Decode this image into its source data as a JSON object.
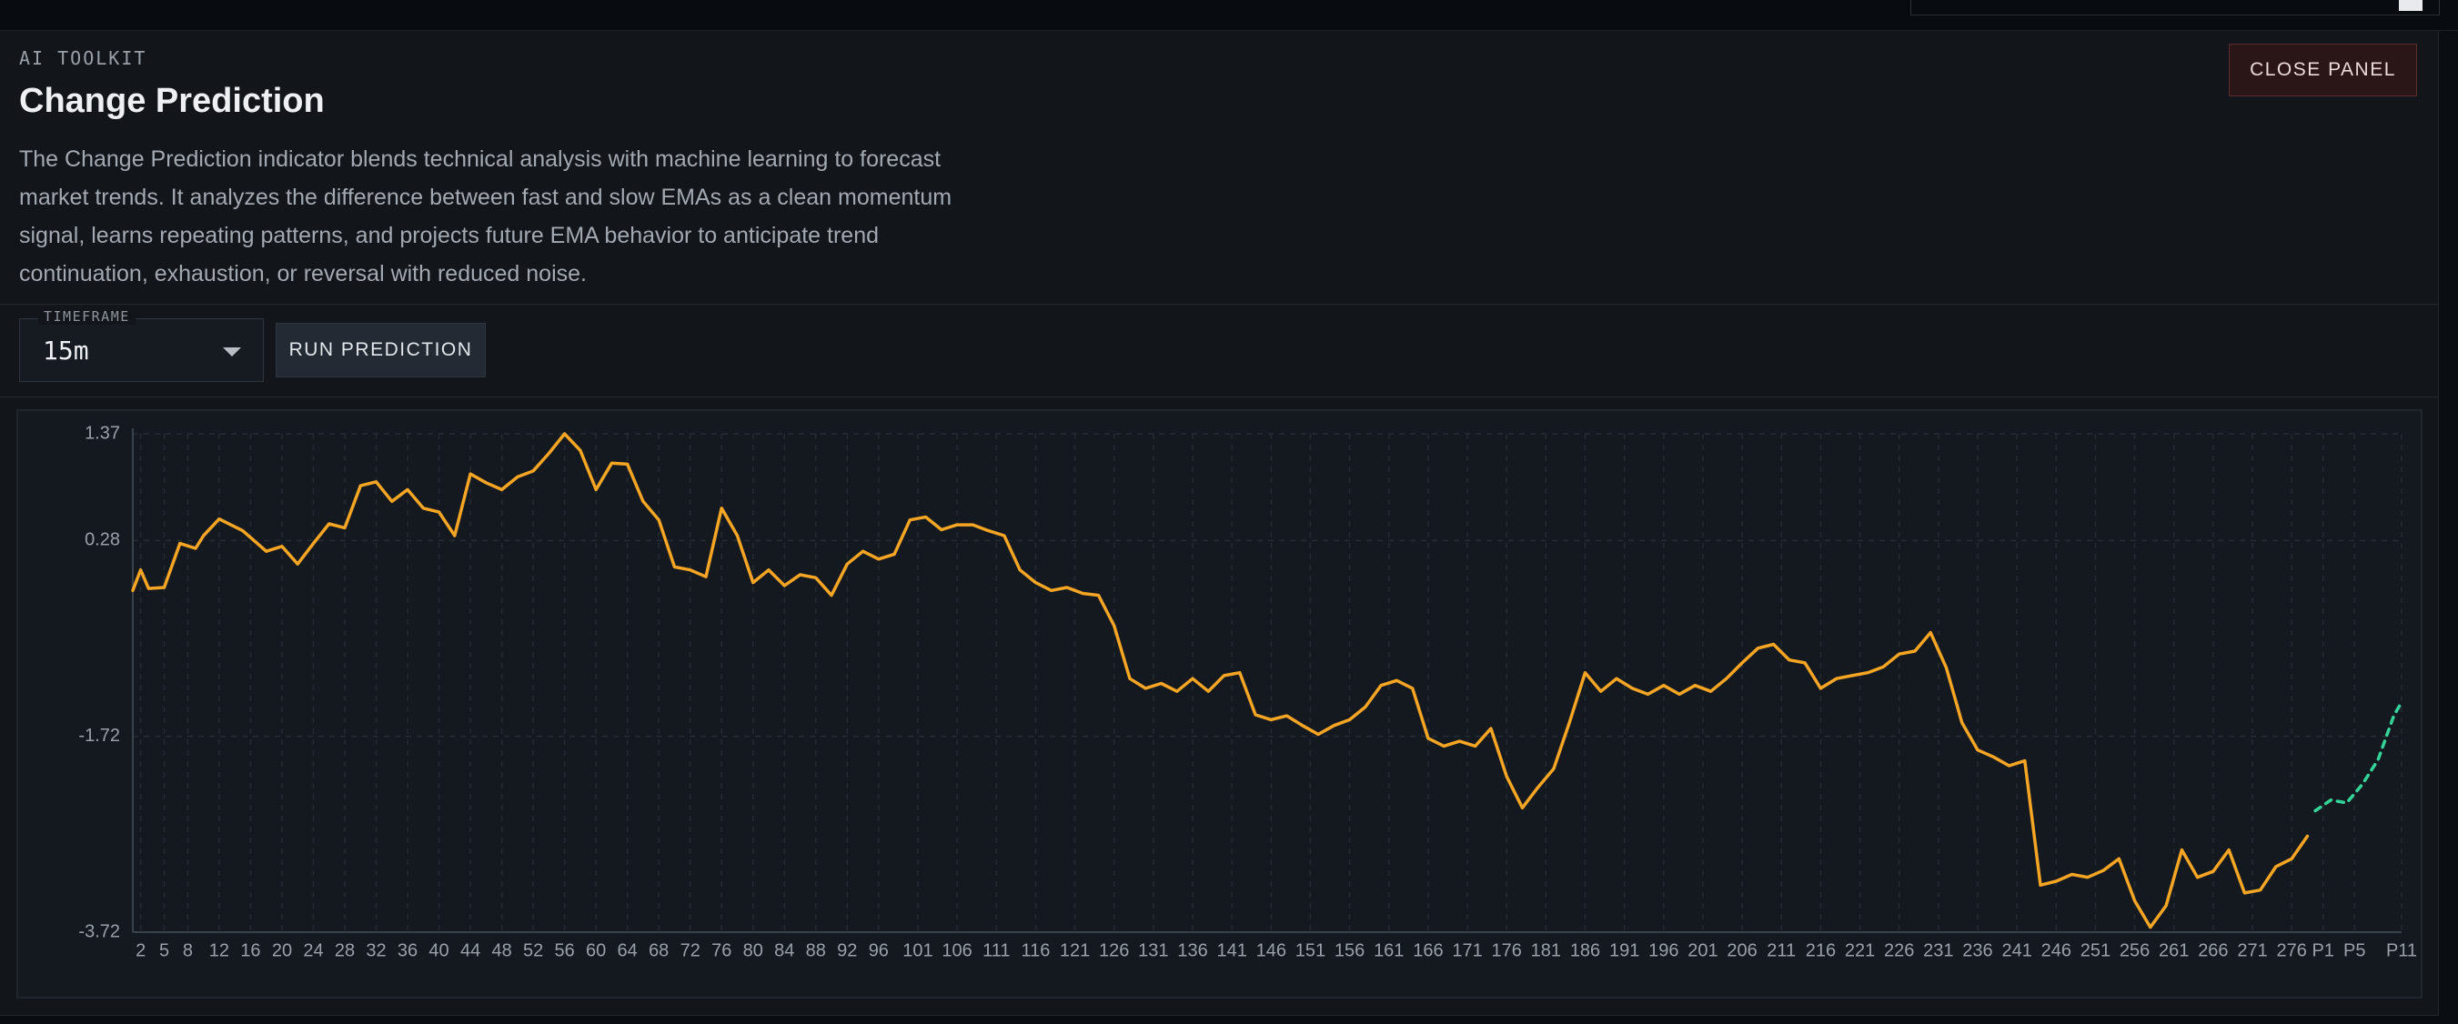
{
  "panel": {
    "eyebrow": "AI TOOLKIT",
    "title": "Change Prediction",
    "description": "The Change Prediction indicator blends technical analysis with machine learning to forecast market trends. It analyzes the difference between fast and slow EMAs as a clean momentum signal, learns repeating patterns, and projects future EMA behavior to anticipate trend continuation, exhaustion, or reversal with reduced noise.",
    "close_button": "CLOSE PANEL",
    "timeframe_label": "TIMEFRAME",
    "timeframe_value": "15m",
    "run_button": "RUN PREDICTION"
  },
  "chart_data": {
    "type": "line",
    "xlim": [
      1,
      290
    ],
    "xticks": [
      2,
      5,
      8,
      12,
      16,
      20,
      24,
      28,
      32,
      36,
      40,
      44,
      48,
      52,
      56,
      60,
      64,
      68,
      72,
      76,
      80,
      84,
      88,
      92,
      96,
      101,
      106,
      111,
      116,
      121,
      126,
      131,
      136,
      141,
      146,
      151,
      156,
      161,
      166,
      171,
      176,
      181,
      186,
      191,
      196,
      201,
      206,
      211,
      216,
      221,
      226,
      231,
      236,
      241,
      246,
      251,
      256,
      261,
      266,
      271,
      276,
      {
        "value": 280,
        "label": "P1"
      },
      {
        "value": 284,
        "label": "P5"
      },
      {
        "value": 290,
        "label": "P11"
      }
    ],
    "ylim": [
      -3.72,
      1.37
    ],
    "yticks": [
      -3.72,
      -1.72,
      0.28,
      1.37
    ],
    "grid": true,
    "series": [
      {
        "color": "#f5a524",
        "x": [
          1,
          2,
          3,
          5,
          7,
          9,
          10,
          12,
          15,
          18,
          20,
          22,
          24,
          26,
          28,
          30,
          32,
          34,
          36,
          38,
          40,
          42,
          44,
          46,
          48,
          50,
          52,
          54,
          56,
          58,
          60,
          62,
          64,
          66,
          68,
          70,
          72,
          74,
          76,
          78,
          80,
          82,
          84,
          86,
          88,
          90,
          92,
          94,
          96,
          98,
          100,
          102,
          104,
          106,
          108,
          110,
          112,
          114,
          116,
          118,
          120,
          122,
          124,
          126,
          128,
          130,
          132,
          134,
          136,
          138,
          140,
          142,
          144,
          146,
          148,
          150,
          152,
          154,
          156,
          158,
          160,
          162,
          164,
          166,
          168,
          170,
          172,
          174,
          176,
          178,
          180,
          182,
          184,
          186,
          188,
          190,
          192,
          194,
          196,
          198,
          200,
          202,
          204,
          206,
          208,
          210,
          212,
          214,
          216,
          218,
          220,
          222,
          224,
          226,
          228,
          230,
          232,
          234,
          236,
          238,
          240,
          242,
          244,
          246,
          248,
          250,
          252,
          254,
          256,
          258,
          260,
          262,
          264,
          266,
          268,
          270,
          272,
          274,
          276,
          278
        ],
        "values": [
          -0.23,
          -0.02,
          -0.21,
          -0.2,
          0.25,
          0.2,
          0.33,
          0.5,
          0.38,
          0.17,
          0.22,
          0.04,
          0.25,
          0.45,
          0.41,
          0.84,
          0.88,
          0.68,
          0.8,
          0.61,
          0.57,
          0.33,
          0.96,
          0.87,
          0.8,
          0.93,
          0.99,
          1.17,
          1.37,
          1.2,
          0.8,
          1.07,
          1.06,
          0.68,
          0.49,
          0.01,
          -0.02,
          -0.09,
          0.61,
          0.33,
          -0.15,
          -0.02,
          -0.18,
          -0.07,
          -0.1,
          -0.28,
          0.04,
          0.17,
          0.09,
          0.14,
          0.49,
          0.52,
          0.39,
          0.44,
          0.44,
          0.38,
          0.33,
          -0.02,
          -0.15,
          -0.23,
          -0.2,
          -0.26,
          -0.28,
          -0.59,
          -1.13,
          -1.23,
          -1.18,
          -1.26,
          -1.13,
          -1.26,
          -1.1,
          -1.07,
          -1.5,
          -1.55,
          -1.51,
          -1.61,
          -1.7,
          -1.61,
          -1.55,
          -1.42,
          -1.2,
          -1.15,
          -1.23,
          -1.74,
          -1.82,
          -1.77,
          -1.82,
          -1.64,
          -2.13,
          -2.45,
          -2.24,
          -2.05,
          -1.58,
          -1.07,
          -1.26,
          -1.13,
          -1.23,
          -1.29,
          -1.2,
          -1.29,
          -1.2,
          -1.26,
          -1.13,
          -0.97,
          -0.82,
          -0.78,
          -0.94,
          -0.97,
          -1.23,
          -1.13,
          -1.1,
          -1.07,
          -1.01,
          -0.88,
          -0.85,
          -0.66,
          -1.02,
          -1.58,
          -1.86,
          -1.93,
          -2.02,
          -1.97,
          -3.24,
          -3.2,
          -3.13,
          -3.16,
          -3.09,
          -2.97,
          -3.4,
          -3.67,
          -3.45,
          -2.88,
          -3.16,
          -3.1,
          -2.88,
          -3.32,
          -3.29,
          -3.05,
          -2.97,
          -2.74
        ]
      },
      {
        "color": "#34d399",
        "dashed": true,
        "x": [
          279,
          281,
          283,
          285,
          287,
          289,
          290
        ],
        "values": [
          -2.48,
          -2.37,
          -2.4,
          -2.21,
          -1.96,
          -1.51,
          -1.37
        ]
      }
    ]
  }
}
